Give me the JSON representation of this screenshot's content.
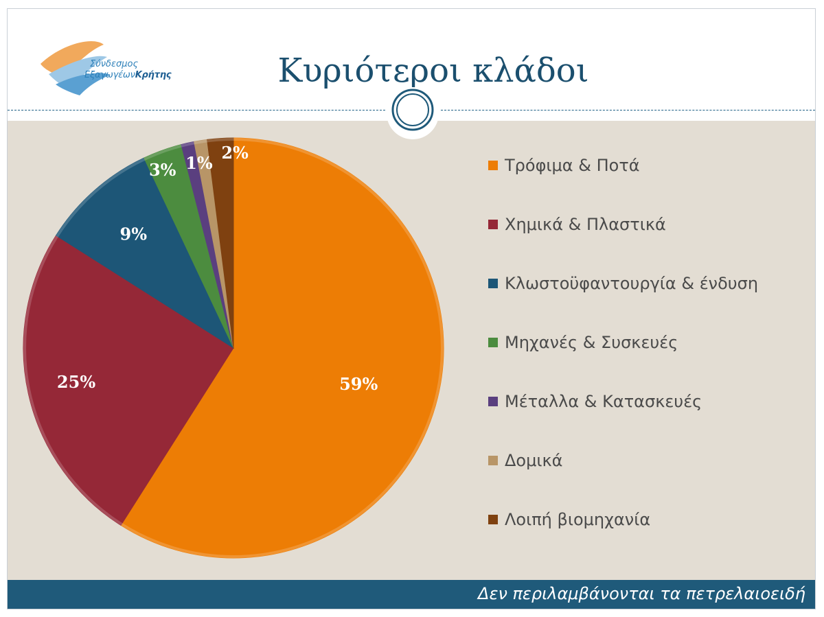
{
  "header": {
    "logo": {
      "line1": "Σύνδεσμος",
      "line2_regular": "Εξαγωγέων",
      "line2_bold": "Κρήτης"
    },
    "title": "Κυριότεροι κλάδοι"
  },
  "colors": {
    "accent": "#1f5a7a",
    "background": "#e3ddd3"
  },
  "chart_data": {
    "type": "pie",
    "title": "",
    "categories": [
      "Τρόφιμα & Ποτά",
      "Χημικά & Πλαστικά",
      "Κλωστοϋφαντουργία & ένδυση",
      "Μηχανές & Συσκευές",
      "Μέταλλα & Κατασκευές",
      "Δομικά",
      "Λοιπή βιομηχανία"
    ],
    "values": [
      59,
      25,
      9,
      3,
      1,
      1,
      2
    ],
    "labels": [
      "59%",
      "25%",
      "9%",
      "3%",
      "1%",
      "",
      "2%"
    ],
    "colors": [
      "#ed7d05",
      "#952837",
      "#1d5677",
      "#4c8c3f",
      "#5a3f7f",
      "#b89567",
      "#7f4110"
    ],
    "legend_position": "right",
    "start_angle_deg": 0,
    "direction": "clockwise"
  },
  "footer": {
    "note": "Δεν περιλαμβάνονται τα πετρελαιοειδή"
  }
}
